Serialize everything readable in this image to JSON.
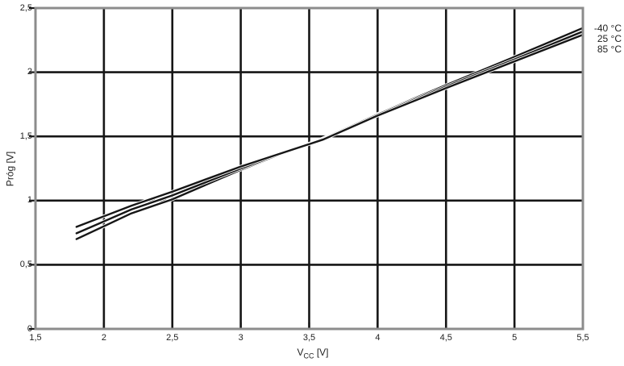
{
  "chart_data": {
    "type": "line",
    "title": "",
    "xlabel": "VCC [V]",
    "xlabel_parts": {
      "main": "V",
      "sub": "CC",
      "unit": " [V]"
    },
    "ylabel": "Próg [V]",
    "xlim": [
      1.5,
      5.5
    ],
    "ylim": [
      0,
      2.5
    ],
    "grid": true,
    "legend_position": "outside-top-right",
    "x_ticks": {
      "values": [
        1.5,
        2,
        2.5,
        3,
        3.5,
        4,
        4.5,
        5,
        5.5
      ],
      "labels": [
        "1,5",
        "2",
        "2,5",
        "3",
        "3,5",
        "4",
        "4,5",
        "5",
        "5,5"
      ]
    },
    "y_ticks": {
      "values": [
        0,
        0.5,
        1,
        1.5,
        2,
        2.5
      ],
      "labels": [
        "0",
        "0,5",
        "1",
        "1,5",
        "2",
        "2,5"
      ]
    },
    "series": [
      {
        "name": "-40 °C",
        "color": "#161616",
        "x": [
          1.8,
          2.2,
          2.5,
          3.0,
          3.6,
          4.0,
          4.5,
          5.0,
          5.5
        ],
        "y": [
          0.7,
          0.9,
          1.01,
          1.24,
          1.485,
          1.675,
          1.9,
          2.12,
          2.345
        ]
      },
      {
        "name": "25 °C",
        "color": "#161616",
        "x": [
          1.8,
          2.2,
          2.5,
          3.0,
          3.6,
          4.0,
          4.5,
          5.0,
          5.5
        ],
        "y": [
          0.745,
          0.93,
          1.04,
          1.25,
          1.48,
          1.67,
          1.888,
          2.1,
          2.318
        ]
      },
      {
        "name": "85 °C",
        "color": "#161616",
        "x": [
          1.8,
          2.2,
          2.5,
          3.0,
          3.6,
          4.0,
          4.5,
          5.0,
          5.5
        ],
        "y": [
          0.795,
          0.96,
          1.07,
          1.265,
          1.475,
          1.662,
          1.876,
          2.085,
          2.292
        ]
      }
    ]
  },
  "legend": {
    "items": [
      "-40 °C",
      "25 °C",
      "85 °C"
    ]
  },
  "colors": {
    "background": "#ffffff",
    "grid": "#161616",
    "frame": "#8c8c8c",
    "text": "#1f1f1f",
    "line": "#161616"
  }
}
